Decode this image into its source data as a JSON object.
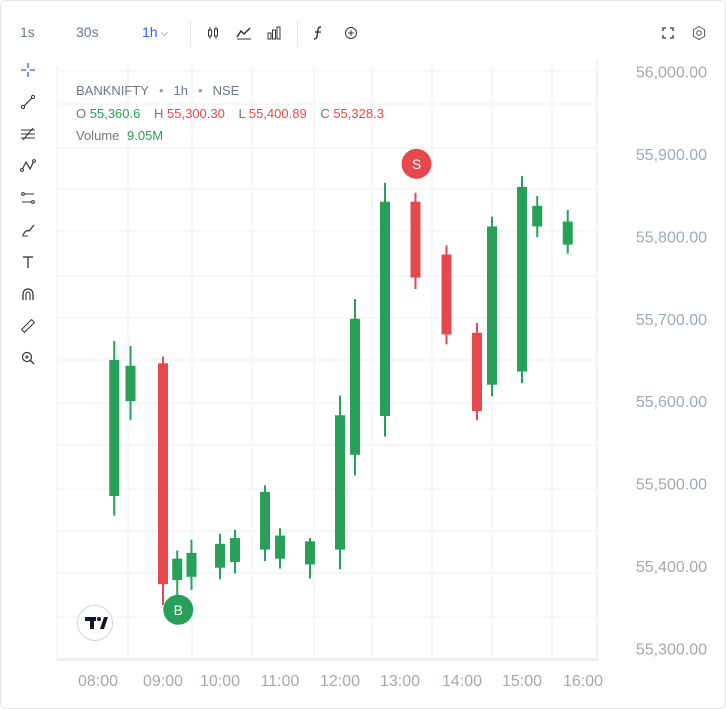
{
  "toolbar": {
    "interval_1s": "1s",
    "interval_30s": "30s",
    "interval_1h": "1h",
    "accent_color": "#2962ff"
  },
  "left_tools": [
    "crosshair-icon",
    "trendline-icon",
    "fib-lines-icon",
    "pattern-icon",
    "projection-icon",
    "brush-icon",
    "text-icon",
    "magnet-icon",
    "ruler-icon",
    "zoom-in-icon"
  ],
  "legend": {
    "symbol": "BANKNIFTY",
    "interval": "1h",
    "exchange": "NSE",
    "o_label": "O",
    "o_value": "55,360.6",
    "h_label": "H",
    "h_value": "55,300.30",
    "l_label": "L",
    "l_value": "55,400.89",
    "c_label": "C",
    "c_value": "55,328.3",
    "volume_label": "Volume",
    "volume_value": "9.05M"
  },
  "chart_data": {
    "type": "candlestick",
    "x_ticks": [
      "08:00",
      "09:00",
      "10:00",
      "11:00",
      "12:00",
      "13:00",
      "14:00",
      "15:00",
      "16:00"
    ],
    "y_ticks": [
      "56,000.00",
      "55,900.00",
      "55,800.00",
      "55,700.00",
      "55,600.00",
      "55,500.00",
      "55,400.00",
      "55,300.00"
    ],
    "ylim": [
      55300,
      56000
    ],
    "grid": true,
    "up_color": "#27a15a",
    "down_color": "#e5484d",
    "candles": [
      {
        "t": "08:15",
        "o": 55485,
        "h": 55673,
        "l": 55461,
        "c": 55650
      },
      {
        "t": "08:30",
        "o": 55600,
        "h": 55667,
        "l": 55577,
        "c": 55643
      },
      {
        "t": "09:00",
        "o": 55646,
        "h": 55654,
        "l": 55353,
        "c": 55378
      },
      {
        "t": "09:15",
        "o": 55383,
        "h": 55419,
        "l": 55364,
        "c": 55409
      },
      {
        "t": "09:30",
        "o": 55387,
        "h": 55432,
        "l": 55371,
        "c": 55416
      },
      {
        "t": "10:00",
        "o": 55398,
        "h": 55439,
        "l": 55384,
        "c": 55427
      },
      {
        "t": "10:15",
        "o": 55405,
        "h": 55444,
        "l": 55391,
        "c": 55434
      },
      {
        "t": "10:45",
        "o": 55420,
        "h": 55498,
        "l": 55406,
        "c": 55490
      },
      {
        "t": "11:00",
        "o": 55409,
        "h": 55446,
        "l": 55397,
        "c": 55437
      },
      {
        "t": "11:30",
        "o": 55402,
        "h": 55434,
        "l": 55385,
        "c": 55430
      },
      {
        "t": "12:00",
        "o": 55420,
        "h": 55607,
        "l": 55396,
        "c": 55583
      },
      {
        "t": "12:15",
        "o": 55535,
        "h": 55724,
        "l": 55510,
        "c": 55700
      },
      {
        "t": "12:45",
        "o": 55582,
        "h": 55865,
        "l": 55557,
        "c": 55842
      },
      {
        "t": "13:15",
        "o": 55842,
        "h": 55853,
        "l": 55736,
        "c": 55750
      },
      {
        "t": "13:45",
        "o": 55778,
        "h": 55789,
        "l": 55669,
        "c": 55681
      },
      {
        "t": "14:15",
        "o": 55683,
        "h": 55695,
        "l": 55577,
        "c": 55588
      },
      {
        "t": "14:30",
        "o": 55620,
        "h": 55824,
        "l": 55606,
        "c": 55812
      },
      {
        "t": "15:00",
        "o": 55636,
        "h": 55873,
        "l": 55622,
        "c": 55860
      },
      {
        "t": "15:15",
        "o": 55812,
        "h": 55849,
        "l": 55799,
        "c": 55837
      },
      {
        "t": "15:45",
        "o": 55790,
        "h": 55832,
        "l": 55779,
        "c": 55818
      }
    ],
    "markers": [
      {
        "label": "B",
        "candle": 3,
        "price": 55347,
        "color": "#27a15a"
      },
      {
        "label": "S",
        "candle": 13,
        "price": 55888,
        "color": "#e5484d"
      }
    ]
  }
}
